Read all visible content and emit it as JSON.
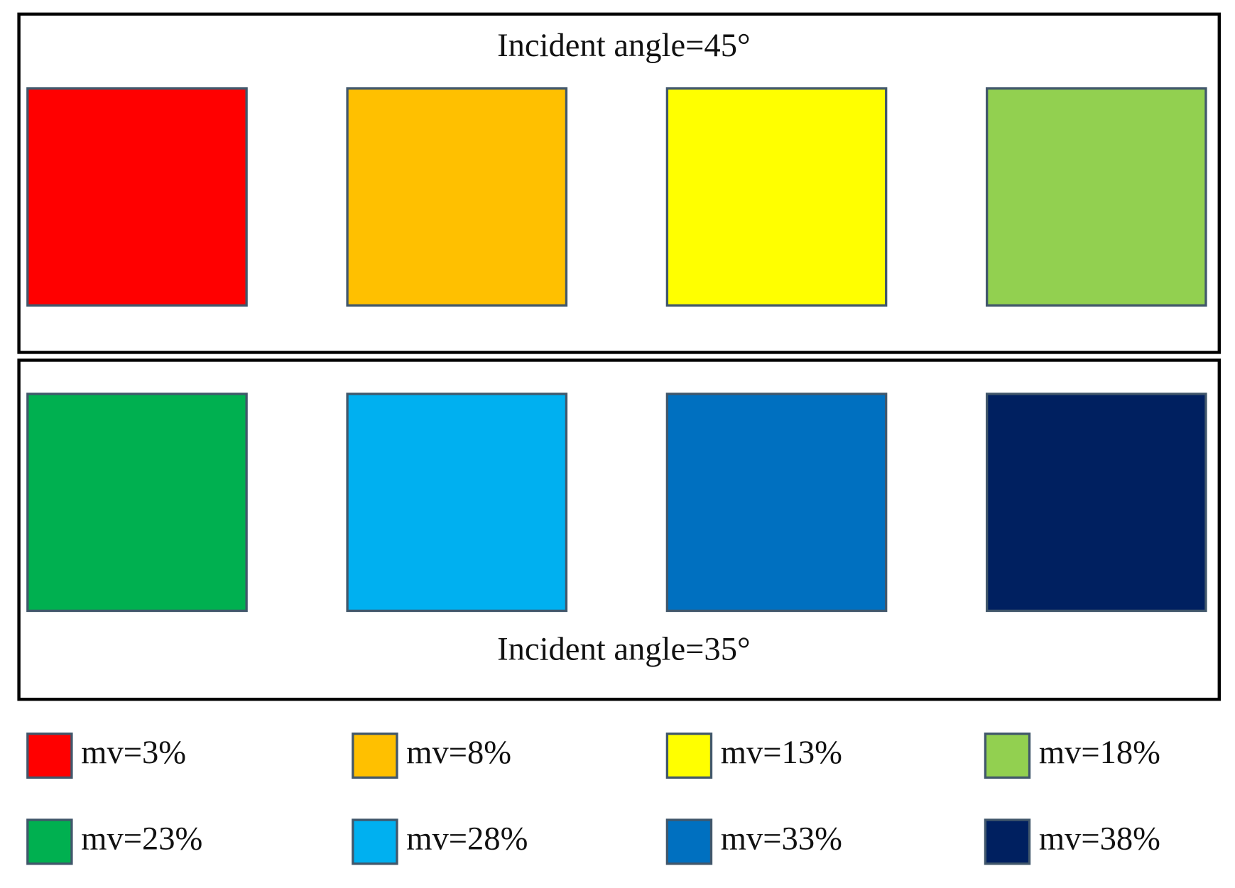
{
  "panels": [
    {
      "title": "Incident angle=45°"
    },
    {
      "title": "Incident angle=35°"
    }
  ],
  "legend": [
    {
      "label": "mv=3%",
      "color": "#ff0000"
    },
    {
      "label": "mv=8%",
      "color": "#ffc000"
    },
    {
      "label": "mv=13%",
      "color": "#ffff00"
    },
    {
      "label": "mv=18%",
      "color": "#92d050"
    },
    {
      "label": "mv=23%",
      "color": "#00b050"
    },
    {
      "label": "mv=28%",
      "color": "#00b0f0"
    },
    {
      "label": "mv=33%",
      "color": "#0070c0"
    },
    {
      "label": "mv=38%",
      "color": "#002060"
    }
  ]
}
